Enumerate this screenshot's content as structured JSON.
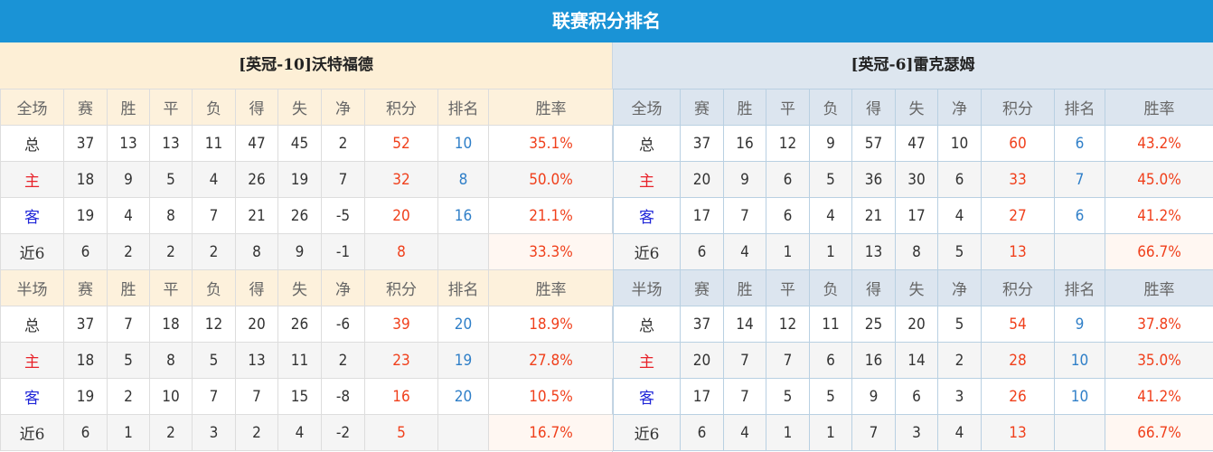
{
  "title": "联赛积分排名",
  "columns": {
    "full": [
      "全场",
      "赛",
      "胜",
      "平",
      "负",
      "得",
      "失",
      "净",
      "积分",
      "排名",
      "胜率"
    ],
    "half": [
      "半场",
      "赛",
      "胜",
      "平",
      "负",
      "得",
      "失",
      "净",
      "积分",
      "排名",
      "胜率"
    ]
  },
  "teams": [
    {
      "name": "[英冠-10]沃特福德",
      "full": [
        [
          "总",
          "37",
          "13",
          "13",
          "11",
          "47",
          "45",
          "2",
          "52",
          "10",
          "35.1%"
        ],
        [
          "主",
          "18",
          "9",
          "5",
          "4",
          "26",
          "19",
          "7",
          "32",
          "8",
          "50.0%"
        ],
        [
          "客",
          "19",
          "4",
          "8",
          "7",
          "21",
          "26",
          "-5",
          "20",
          "16",
          "21.1%"
        ],
        [
          "近6",
          "6",
          "2",
          "2",
          "2",
          "8",
          "9",
          "-1",
          "8",
          "",
          "33.3%"
        ]
      ],
      "half": [
        [
          "总",
          "37",
          "7",
          "18",
          "12",
          "20",
          "26",
          "-6",
          "39",
          "20",
          "18.9%"
        ],
        [
          "主",
          "18",
          "5",
          "8",
          "5",
          "13",
          "11",
          "2",
          "23",
          "19",
          "27.8%"
        ],
        [
          "客",
          "19",
          "2",
          "10",
          "7",
          "7",
          "15",
          "-8",
          "16",
          "20",
          "10.5%"
        ],
        [
          "近6",
          "6",
          "1",
          "2",
          "3",
          "2",
          "4",
          "-2",
          "5",
          "",
          "16.7%"
        ]
      ]
    },
    {
      "name": "[英冠-6]雷克瑟姆",
      "full": [
        [
          "总",
          "37",
          "16",
          "12",
          "9",
          "57",
          "47",
          "10",
          "60",
          "6",
          "43.2%"
        ],
        [
          "主",
          "20",
          "9",
          "6",
          "5",
          "36",
          "30",
          "6",
          "33",
          "7",
          "45.0%"
        ],
        [
          "客",
          "17",
          "7",
          "6",
          "4",
          "21",
          "17",
          "4",
          "27",
          "6",
          "41.2%"
        ],
        [
          "近6",
          "6",
          "4",
          "1",
          "1",
          "13",
          "8",
          "5",
          "13",
          "",
          "66.7%"
        ]
      ],
      "half": [
        [
          "总",
          "37",
          "14",
          "12",
          "11",
          "25",
          "20",
          "5",
          "54",
          "9",
          "37.8%"
        ],
        [
          "主",
          "20",
          "7",
          "7",
          "6",
          "16",
          "14",
          "2",
          "28",
          "10",
          "35.0%"
        ],
        [
          "客",
          "17",
          "7",
          "5",
          "5",
          "9",
          "6",
          "3",
          "26",
          "10",
          "41.2%"
        ],
        [
          "近6",
          "6",
          "4",
          "1",
          "1",
          "7",
          "3",
          "4",
          "13",
          "",
          "66.7%"
        ]
      ]
    }
  ],
  "colors": {
    "title_bar": "#1a93d6",
    "points": "#f0401c",
    "rank": "#2f7fc8",
    "home": "#e8222a",
    "away": "#1f25d8"
  }
}
